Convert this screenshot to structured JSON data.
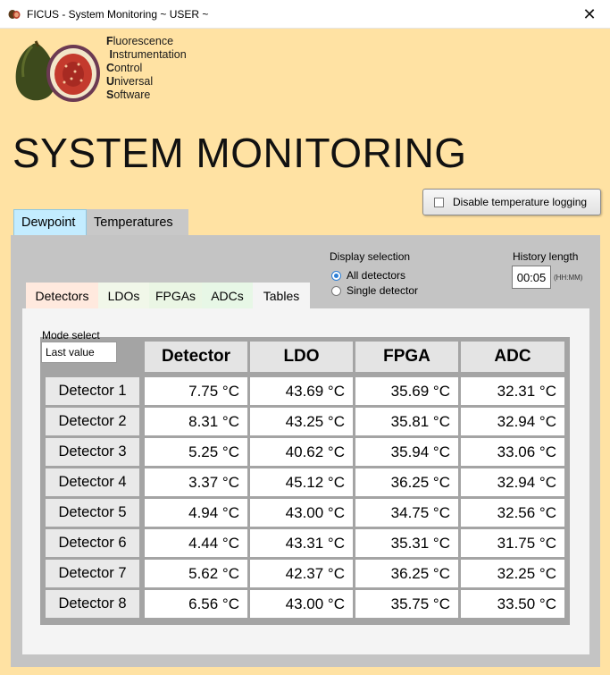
{
  "window": {
    "title": "FICUS - System Monitoring ~ USER ~",
    "close_glyph": "✕"
  },
  "acronym": [
    {
      "cap": "F",
      "rest": "luorescence"
    },
    {
      "cap": "I",
      "rest": "nstrumentation"
    },
    {
      "cap": "C",
      "rest": "ontrol"
    },
    {
      "cap": "U",
      "rest": "niversal"
    },
    {
      "cap": "S",
      "rest": "oftware"
    }
  ],
  "page_title": "SYSTEM MONITORING",
  "disable_logging_label": "Disable temperature logging",
  "outer_tabs": {
    "dewpoint": "Dewpoint",
    "temperatures": "Temperatures"
  },
  "display_selection": {
    "label": "Display selection",
    "options": [
      "All detectors",
      "Single detector"
    ],
    "selected": "All detectors"
  },
  "history": {
    "label": "History length",
    "value": "00:05",
    "unit": "(HH:MM)"
  },
  "inner_tabs": [
    "Detectors",
    "LDOs",
    "FPGAs",
    "ADCs",
    "Tables"
  ],
  "mode_select": {
    "label": "Mode select",
    "value": "Last value"
  },
  "table": {
    "columns": [
      "Detector",
      "LDO",
      "FPGA",
      "ADC"
    ],
    "rows": [
      {
        "name": "Detector 1",
        "values": [
          "7.75 °C",
          "43.69 °C",
          "35.69 °C",
          "32.31 °C"
        ]
      },
      {
        "name": "Detector 2",
        "values": [
          "8.31 °C",
          "43.25 °C",
          "35.81 °C",
          "32.94 °C"
        ]
      },
      {
        "name": "Detector 3",
        "values": [
          "5.25 °C",
          "40.62 °C",
          "35.94 °C",
          "33.06 °C"
        ]
      },
      {
        "name": "Detector 4",
        "values": [
          "3.37 °C",
          "45.12 °C",
          "36.25 °C",
          "32.94 °C"
        ]
      },
      {
        "name": "Detector 5",
        "values": [
          "4.94 °C",
          "43.00 °C",
          "34.75 °C",
          "32.56 °C"
        ]
      },
      {
        "name": "Detector 6",
        "values": [
          "4.44 °C",
          "43.31 °C",
          "35.31 °C",
          "31.75 °C"
        ]
      },
      {
        "name": "Detector 7",
        "values": [
          "5.62 °C",
          "42.37 °C",
          "36.25 °C",
          "32.25 °C"
        ]
      },
      {
        "name": "Detector 8",
        "values": [
          "6.56 °C",
          "43.00 °C",
          "35.75 °C",
          "33.50 °C"
        ]
      }
    ]
  },
  "colors": {
    "background": "#ffe2a3",
    "dewpoint_tab": "#c3ecff",
    "panel": "#c4c4c4",
    "radio_accent": "#2d7fd6"
  }
}
